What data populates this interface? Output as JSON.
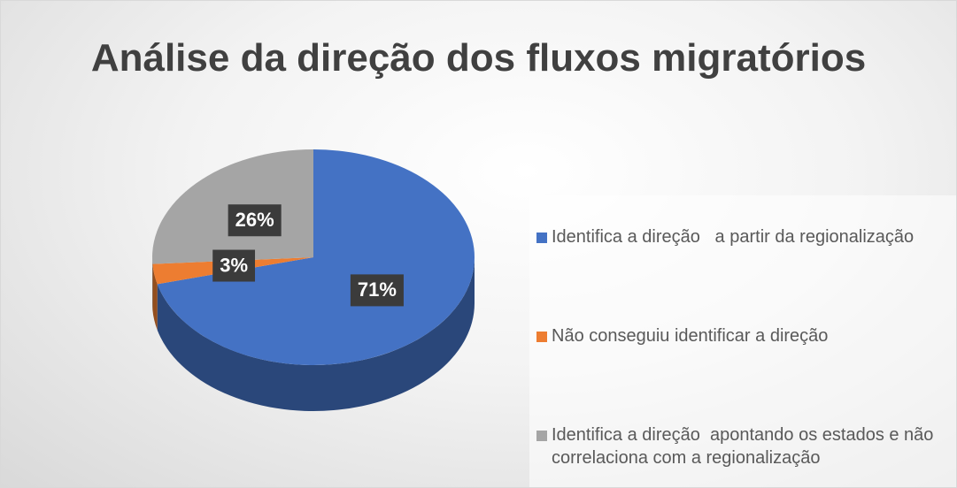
{
  "chart_data": {
    "type": "pie",
    "title": "Análise da direção dos fluxos migratórios",
    "categories": [
      "Identifica a direção   a partir da regionalização",
      "Não conseguiu identificar a direção",
      "Identifica a direção  apontando os estados e não correlaciona com a regionalização"
    ],
    "values": [
      71,
      3,
      26
    ],
    "value_labels": [
      "71%",
      "3%",
      "26%"
    ],
    "colors": [
      "#4472c4",
      "#ed7d31",
      "#a5a5a5"
    ],
    "legend": "right"
  }
}
